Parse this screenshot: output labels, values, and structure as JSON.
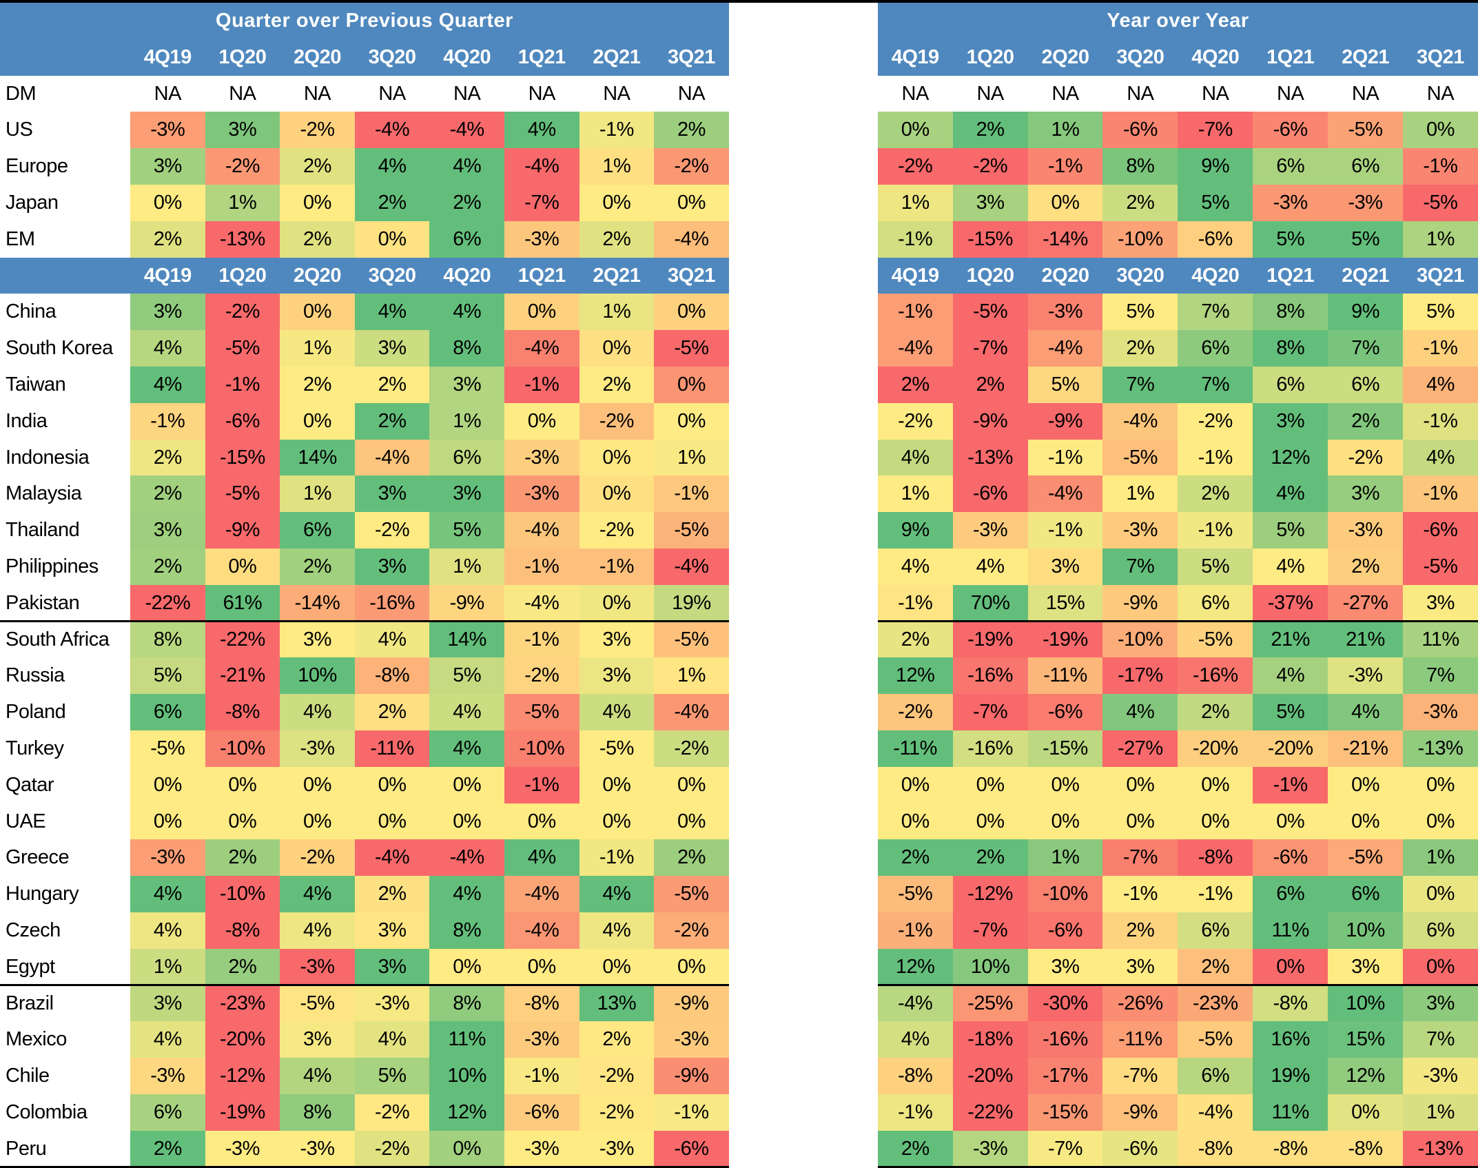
{
  "headers": {
    "qoq_title": "Quarter over Previous Quarter",
    "yoy_title": "Year over Year",
    "quarters": [
      "4Q19",
      "1Q20",
      "2Q20",
      "3Q20",
      "4Q20",
      "1Q21",
      "2Q21",
      "3Q21"
    ]
  },
  "scale_colors": {
    "min": "#F8696B",
    "mid": "#FFEB84",
    "max": "#63BE7B"
  },
  "sections": [
    {
      "rule_below": false,
      "rows": [
        {
          "label": "DM",
          "na": true,
          "qoq": [
            "NA",
            "NA",
            "NA",
            "NA",
            "NA",
            "NA",
            "NA",
            "NA"
          ],
          "yoy": [
            "NA",
            "NA",
            "NA",
            "NA",
            "NA",
            "NA",
            "NA",
            "NA"
          ]
        },
        {
          "label": "US",
          "qoq": [
            "-3%",
            "3%",
            "-2%",
            "-4%",
            "-4%",
            "4%",
            "-1%",
            "2%"
          ],
          "yoy": [
            "0%",
            "2%",
            "1%",
            "-6%",
            "-7%",
            "-6%",
            "-5%",
            "0%"
          ]
        },
        {
          "label": "Europe",
          "qoq": [
            "3%",
            "-2%",
            "2%",
            "4%",
            "4%",
            "-4%",
            "1%",
            "-2%"
          ],
          "yoy": [
            "-2%",
            "-2%",
            "-1%",
            "8%",
            "9%",
            "6%",
            "6%",
            "-1%"
          ]
        },
        {
          "label": "Japan",
          "qoq": [
            "0%",
            "1%",
            "0%",
            "2%",
            "2%",
            "-7%",
            "0%",
            "0%"
          ],
          "yoy": [
            "1%",
            "3%",
            "0%",
            "2%",
            "5%",
            "-3%",
            "-3%",
            "-5%"
          ]
        },
        {
          "label": "EM",
          "qoq": [
            "2%",
            "-13%",
            "2%",
            "0%",
            "6%",
            "-3%",
            "2%",
            "-4%"
          ],
          "yoy": [
            "-1%",
            "-15%",
            "-14%",
            "-10%",
            "-6%",
            "5%",
            "5%",
            "1%"
          ]
        }
      ]
    },
    {
      "header_row": true,
      "rule_below": true,
      "rows": [
        {
          "label": "China",
          "qoq": [
            "3%",
            "-2%",
            "0%",
            "4%",
            "4%",
            "0%",
            "1%",
            "0%"
          ],
          "yoy": [
            "-1%",
            "-5%",
            "-3%",
            "5%",
            "7%",
            "8%",
            "9%",
            "5%"
          ]
        },
        {
          "label": "South Korea",
          "qoq": [
            "4%",
            "-5%",
            "1%",
            "3%",
            "8%",
            "-4%",
            "0%",
            "-5%"
          ],
          "yoy": [
            "-4%",
            "-7%",
            "-4%",
            "2%",
            "6%",
            "8%",
            "7%",
            "-1%"
          ]
        },
        {
          "label": "Taiwan",
          "qoq": [
            "4%",
            "-1%",
            "2%",
            "2%",
            "3%",
            "-1%",
            "2%",
            "0%"
          ],
          "yoy": [
            "2%",
            "2%",
            "5%",
            "7%",
            "7%",
            "6%",
            "6%",
            "4%"
          ]
        },
        {
          "label": "India",
          "qoq": [
            "-1%",
            "-6%",
            "0%",
            "2%",
            "1%",
            "0%",
            "-2%",
            "0%"
          ],
          "yoy": [
            "-2%",
            "-9%",
            "-9%",
            "-4%",
            "-2%",
            "3%",
            "2%",
            "-1%"
          ]
        },
        {
          "label": "Indonesia",
          "qoq": [
            "2%",
            "-15%",
            "14%",
            "-4%",
            "6%",
            "-3%",
            "0%",
            "1%"
          ],
          "yoy": [
            "4%",
            "-13%",
            "-1%",
            "-5%",
            "-1%",
            "12%",
            "-2%",
            "4%"
          ]
        },
        {
          "label": "Malaysia",
          "qoq": [
            "2%",
            "-5%",
            "1%",
            "3%",
            "3%",
            "-3%",
            "0%",
            "-1%"
          ],
          "yoy": [
            "1%",
            "-6%",
            "-4%",
            "1%",
            "2%",
            "4%",
            "3%",
            "-1%"
          ]
        },
        {
          "label": "Thailand",
          "qoq": [
            "3%",
            "-9%",
            "6%",
            "-2%",
            "5%",
            "-4%",
            "-2%",
            "-5%"
          ],
          "yoy": [
            "9%",
            "-3%",
            "-1%",
            "-3%",
            "-1%",
            "5%",
            "-3%",
            "-6%"
          ]
        },
        {
          "label": "Philippines",
          "qoq": [
            "2%",
            "0%",
            "2%",
            "3%",
            "1%",
            "-1%",
            "-1%",
            "-4%"
          ],
          "yoy": [
            "4%",
            "4%",
            "3%",
            "7%",
            "5%",
            "4%",
            "2%",
            "-5%"
          ]
        },
        {
          "label": "Pakistan",
          "qoq": [
            "-22%",
            "61%",
            "-14%",
            "-16%",
            "-9%",
            "-4%",
            "0%",
            "19%"
          ],
          "yoy": [
            "-1%",
            "70%",
            "15%",
            "-9%",
            "6%",
            "-37%",
            "-27%",
            "3%"
          ]
        }
      ]
    },
    {
      "rule_below": true,
      "rows": [
        {
          "label": "South Africa",
          "qoq": [
            "8%",
            "-22%",
            "3%",
            "4%",
            "14%",
            "-1%",
            "3%",
            "-5%"
          ],
          "yoy": [
            "2%",
            "-19%",
            "-19%",
            "-10%",
            "-5%",
            "21%",
            "21%",
            "11%"
          ]
        },
        {
          "label": "Russia",
          "qoq": [
            "5%",
            "-21%",
            "10%",
            "-8%",
            "5%",
            "-2%",
            "3%",
            "1%"
          ],
          "yoy": [
            "12%",
            "-16%",
            "-11%",
            "-17%",
            "-16%",
            "4%",
            "-3%",
            "7%"
          ]
        },
        {
          "label": "Poland",
          "qoq": [
            "6%",
            "-8%",
            "4%",
            "2%",
            "4%",
            "-5%",
            "4%",
            "-4%"
          ],
          "yoy": [
            "-2%",
            "-7%",
            "-6%",
            "4%",
            "2%",
            "5%",
            "4%",
            "-3%"
          ]
        },
        {
          "label": "Turkey",
          "qoq": [
            "-5%",
            "-10%",
            "-3%",
            "-11%",
            "4%",
            "-10%",
            "-5%",
            "-2%"
          ],
          "yoy": [
            "-11%",
            "-16%",
            "-15%",
            "-27%",
            "-20%",
            "-20%",
            "-21%",
            "-13%"
          ]
        },
        {
          "label": "Qatar",
          "qoq": [
            "0%",
            "0%",
            "0%",
            "0%",
            "0%",
            "-1%",
            "0%",
            "0%"
          ],
          "yoy": [
            "0%",
            "0%",
            "0%",
            "0%",
            "0%",
            "-1%",
            "0%",
            "0%"
          ]
        },
        {
          "label": "UAE",
          "qoq": [
            "0%",
            "0%",
            "0%",
            "0%",
            "0%",
            "0%",
            "0%",
            "0%"
          ],
          "yoy": [
            "0%",
            "0%",
            "0%",
            "0%",
            "0%",
            "0%",
            "0%",
            "0%"
          ]
        },
        {
          "label": "Greece",
          "qoq": [
            "-3%",
            "2%",
            "-2%",
            "-4%",
            "-4%",
            "4%",
            "-1%",
            "2%"
          ],
          "yoy": [
            "2%",
            "2%",
            "1%",
            "-7%",
            "-8%",
            "-6%",
            "-5%",
            "1%"
          ]
        },
        {
          "label": "Hungary",
          "qoq": [
            "4%",
            "-10%",
            "4%",
            "2%",
            "4%",
            "-4%",
            "4%",
            "-5%"
          ],
          "yoy": [
            "-5%",
            "-12%",
            "-10%",
            "-1%",
            "-1%",
            "6%",
            "6%",
            "0%"
          ]
        },
        {
          "label": "Czech",
          "qoq": [
            "4%",
            "-8%",
            "4%",
            "3%",
            "8%",
            "-4%",
            "4%",
            "-2%"
          ],
          "yoy": [
            "-1%",
            "-7%",
            "-6%",
            "2%",
            "6%",
            "11%",
            "10%",
            "6%"
          ]
        },
        {
          "label": "Egypt",
          "qoq": [
            "1%",
            "2%",
            "-3%",
            "3%",
            "0%",
            "0%",
            "0%",
            "0%"
          ],
          "yoy": [
            "12%",
            "10%",
            "3%",
            "3%",
            "2%",
            "0%",
            "3%",
            "0%"
          ]
        }
      ]
    },
    {
      "rule_below": true,
      "rows": [
        {
          "label": "Brazil",
          "qoq": [
            "3%",
            "-23%",
            "-5%",
            "-3%",
            "8%",
            "-8%",
            "13%",
            "-9%"
          ],
          "yoy": [
            "-4%",
            "-25%",
            "-30%",
            "-26%",
            "-23%",
            "-8%",
            "10%",
            "3%"
          ]
        },
        {
          "label": "Mexico",
          "qoq": [
            "4%",
            "-20%",
            "3%",
            "4%",
            "11%",
            "-3%",
            "2%",
            "-3%"
          ],
          "yoy": [
            "4%",
            "-18%",
            "-16%",
            "-11%",
            "-5%",
            "16%",
            "15%",
            "7%"
          ]
        },
        {
          "label": "Chile",
          "qoq": [
            "-3%",
            "-12%",
            "4%",
            "5%",
            "10%",
            "-1%",
            "-2%",
            "-9%"
          ],
          "yoy": [
            "-8%",
            "-20%",
            "-17%",
            "-7%",
            "6%",
            "19%",
            "12%",
            "-3%"
          ]
        },
        {
          "label": "Colombia",
          "qoq": [
            "6%",
            "-19%",
            "8%",
            "-2%",
            "12%",
            "-6%",
            "-2%",
            "-1%"
          ],
          "yoy": [
            "-1%",
            "-22%",
            "-15%",
            "-9%",
            "-4%",
            "11%",
            "0%",
            "1%"
          ]
        },
        {
          "label": "Peru",
          "qoq": [
            "2%",
            "-3%",
            "-3%",
            "-2%",
            "0%",
            "-3%",
            "-3%",
            "-6%"
          ],
          "yoy": [
            "2%",
            "-3%",
            "-7%",
            "-6%",
            "-8%",
            "-8%",
            "-8%",
            "-13%"
          ]
        }
      ]
    }
  ]
}
